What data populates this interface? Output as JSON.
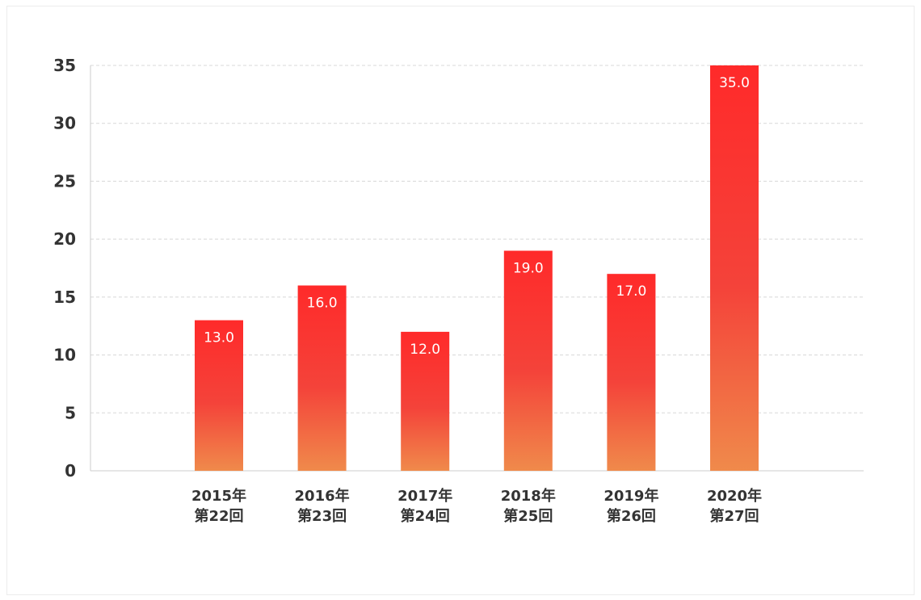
{
  "chart_data": {
    "type": "bar",
    "title": "",
    "xlabel": "",
    "ylabel": "",
    "ylim": [
      0,
      35
    ],
    "yticks": [
      0,
      5,
      10,
      15,
      20,
      25,
      30,
      35
    ],
    "grid": true,
    "categories": [
      [
        "2015年",
        "第22回"
      ],
      [
        "2016年",
        "第23回"
      ],
      [
        "2017年",
        "第24回"
      ],
      [
        "2018年",
        "第25回"
      ],
      [
        "2019年",
        "第26回"
      ],
      [
        "2020年",
        "第27回"
      ]
    ],
    "values": [
      13,
      16,
      12,
      19,
      17,
      35
    ],
    "value_labels": [
      "13.0",
      "16.0",
      "12.0",
      "19.0",
      "17.0",
      "35.0"
    ],
    "colors": {
      "bar_top": "#ff2a2a",
      "bar_bottom": "#f08a4b",
      "grid": "#d8d8d8",
      "axis": "#cccccc",
      "text": "#333333"
    }
  }
}
